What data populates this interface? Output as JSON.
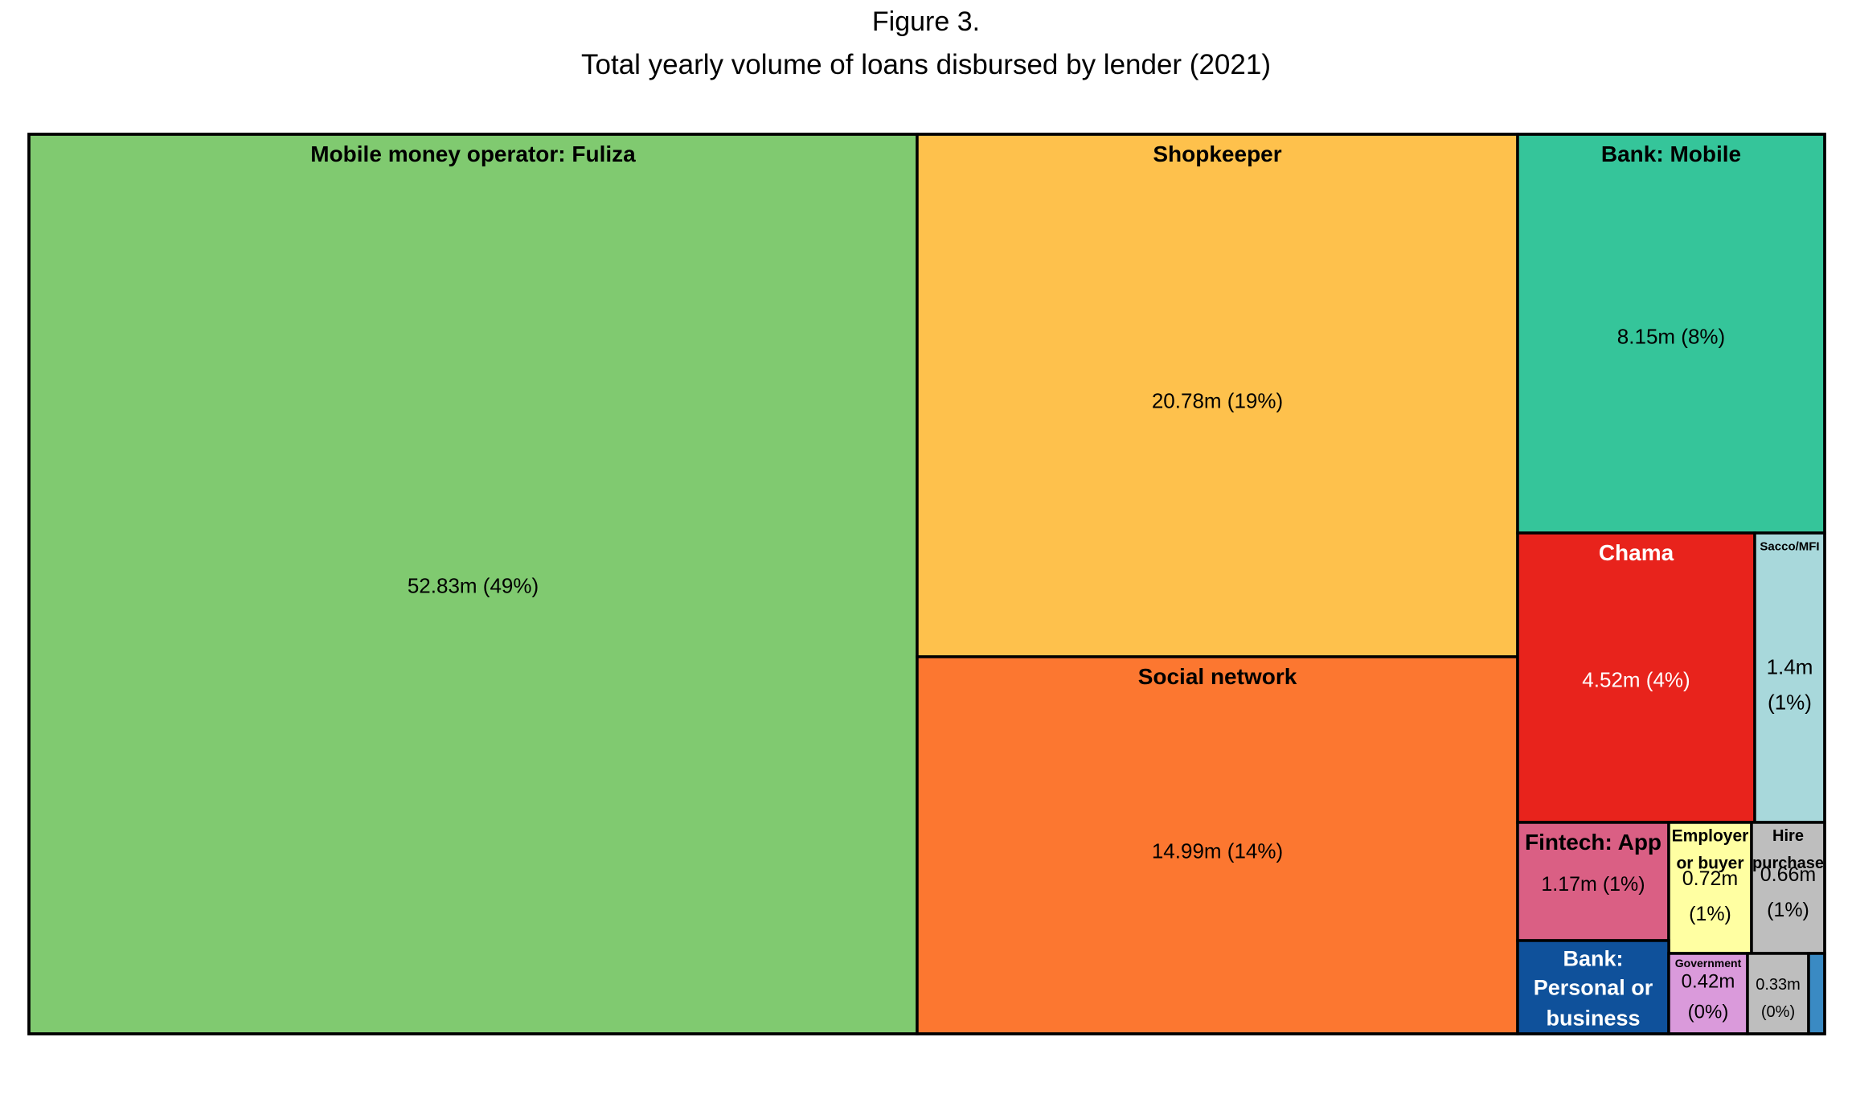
{
  "chart_data": {
    "type": "treemap",
    "title": "Figure 3.",
    "subtitle": "Total yearly volume of loans disbursed by lender (2021)",
    "unit": "m",
    "items": [
      {
        "name": "Mobile money operator: Fuliza",
        "value": 52.83,
        "label": "52.83m (49%)",
        "color": "#80CA70",
        "text_color": "#000000"
      },
      {
        "name": "Shopkeeper",
        "value": 20.78,
        "label": "20.78m (19%)",
        "color": "#FEC14C",
        "text_color": "#000000"
      },
      {
        "name": "Social network",
        "value": 14.99,
        "label": "14.99m (14%)",
        "color": "#FC7730",
        "text_color": "#000000"
      },
      {
        "name": "Bank: Mobile",
        "value": 8.15,
        "label": "8.15m (8%)",
        "color": "#35C59A",
        "text_color": "#000000"
      },
      {
        "name": "Chama",
        "value": 4.52,
        "label": "4.52m (4%)",
        "color": "#E8231C",
        "text_color": "#ffffff"
      },
      {
        "name": "Sacco/MFI",
        "value": 1.4,
        "label": "1.4m (1%)",
        "color": "#A8D8DB",
        "text_color": "#000000"
      },
      {
        "name": "Fintech: App",
        "value": 1.17,
        "label": "1.17m (1%)",
        "color": "#DA5F84",
        "text_color": "#000000"
      },
      {
        "name": "Employer or buyer",
        "value": 0.72,
        "label": "0.72m (1%)",
        "color": "#FFFFA2",
        "text_color": "#000000"
      },
      {
        "name": "Hire purchase",
        "value": 0.66,
        "label": "0.66m (1%)",
        "color": "#BEBEBE",
        "text_color": "#000000"
      },
      {
        "name": "Bank: Personal or business",
        "value": null,
        "label": "",
        "color": "#0F519B",
        "text_color": "#ffffff"
      },
      {
        "name": "Government",
        "value": 0.42,
        "label": "0.42m (0%)",
        "color": "#DA9ADB",
        "text_color": "#000000"
      },
      {
        "name": "",
        "value": 0.33,
        "label": "0.33m (0%)",
        "color": "#BEBEBE",
        "text_color": "#000000"
      },
      {
        "name": "",
        "value": null,
        "label": "",
        "color": "#3A8AC3",
        "text_color": "#000000"
      }
    ]
  }
}
